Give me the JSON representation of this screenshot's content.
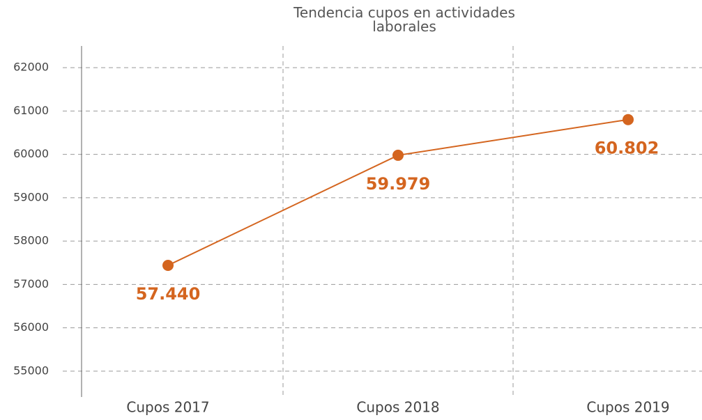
{
  "chart_data": {
    "type": "line",
    "title": "Tendencia cupos en actividades laborales",
    "categories": [
      "Cupos 2017",
      "Cupos 2018",
      "Cupos 2019"
    ],
    "series": [
      {
        "name": "Cupos",
        "color": "#d4651f",
        "values": [
          57440,
          59979,
          60802
        ],
        "value_labels": [
          "57.440",
          "59.979",
          "60.802"
        ]
      }
    ],
    "ylim": [
      54500,
      62500
    ],
    "yticks": [
      55000,
      56000,
      57000,
      58000,
      59000,
      60000,
      61000,
      62000
    ],
    "grid": true
  }
}
